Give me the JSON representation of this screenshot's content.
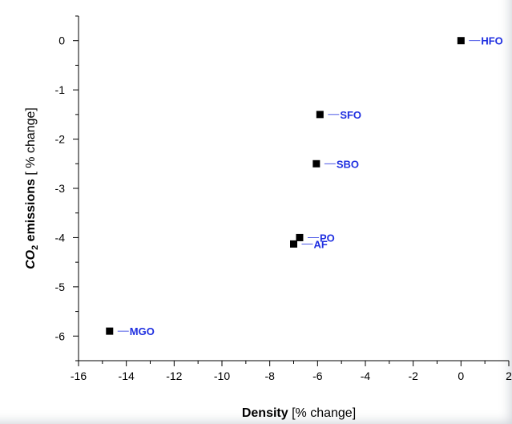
{
  "chart_data": {
    "type": "scatter",
    "xlabel_bold": "Density",
    "xlabel_rest": " [% change]",
    "ylabel_co": "CO",
    "ylabel_sub": "2",
    "ylabel_bold_rest": " emissions",
    "ylabel_rest": " [ % change]",
    "xlim": [
      -16,
      2
    ],
    "ylim": [
      -6.5,
      0.5
    ],
    "xticks": [
      -16,
      -14,
      -12,
      -10,
      -8,
      -6,
      -4,
      -2,
      0,
      2
    ],
    "yticks": [
      0,
      -1,
      -2,
      -3,
      -4,
      -5,
      -6
    ],
    "grid": false,
    "label_color": "#1f2fe0",
    "marker_color": "#000000",
    "points": [
      {
        "label": "HFO",
        "x": 0.0,
        "y": 0.0
      },
      {
        "label": "SFO",
        "x": -5.9,
        "y": -1.5
      },
      {
        "label": "SBO",
        "x": -6.05,
        "y": -2.5
      },
      {
        "label": "PO",
        "x": -6.75,
        "y": -4.0
      },
      {
        "label": "AF",
        "x": -7.0,
        "y": -4.13
      },
      {
        "label": "MGO",
        "x": -14.7,
        "y": -5.9
      }
    ]
  }
}
